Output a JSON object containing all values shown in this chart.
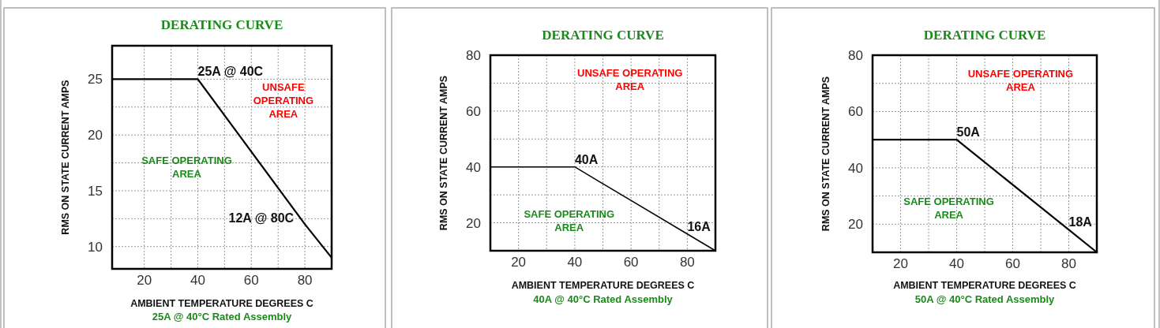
{
  "chart_data": [
    {
      "type": "line",
      "title": "DERATING CURVE",
      "xlabel": "AMBIENT TEMPERATURE DEGREES C",
      "ylabel": "RMS ON STATE CURRENT AMPS",
      "xlim": [
        8,
        90
      ],
      "ylim": [
        8,
        28
      ],
      "xticks": [
        20,
        {
          "value": 30,
          "label": null
        },
        40,
        {
          "value": 50,
          "label": null
        },
        60,
        {
          "value": 70,
          "label": null
        },
        80
      ],
      "yticks": [
        10,
        {
          "value": 12.5,
          "label": null
        },
        15,
        {
          "value": 17.5,
          "label": null
        },
        20,
        {
          "value": 22.5,
          "label": null
        },
        25
      ],
      "grid": true,
      "x": [
        8,
        40,
        80,
        90
      ],
      "values": [
        25,
        25,
        12,
        9
      ],
      "value_labels": [
        null,
        "25A @ 40C",
        "12A @ 80C",
        null
      ],
      "color": "#000000",
      "annotations": [
        "UNSAFE OPERATING AREA",
        "SAFE OPERATING AREA",
        "25A @ 40°C Rated Assembly"
      ]
    },
    {
      "type": "line",
      "title": "DERATING CURVE",
      "xlabel": "AMBIENT TEMPERATURE DEGREES C",
      "ylabel": "RMS ON STATE CURRENT AMPS",
      "xlim": [
        10,
        90
      ],
      "ylim": [
        10,
        80
      ],
      "xticks": [
        20,
        {
          "value": 30,
          "label": null
        },
        40,
        {
          "value": 50,
          "label": null
        },
        60,
        {
          "value": 70,
          "label": null
        },
        80
      ],
      "yticks": [
        20,
        {
          "value": 30,
          "label": null
        },
        40,
        {
          "value": 50,
          "label": null
        },
        60,
        {
          "value": 70,
          "label": null
        },
        80
      ],
      "grid": true,
      "x": [
        10,
        40,
        80,
        90
      ],
      "values": [
        40,
        40,
        16,
        10
      ],
      "value_labels": [
        null,
        "40A",
        "16A",
        null
      ],
      "color": "#000000",
      "annotations": [
        "UNSAFE OPERATING AREA",
        "SAFE OPERATING AREA",
        "40A @ 40°C Rated Assembly"
      ]
    },
    {
      "type": "line",
      "title": "DERATING CURVE",
      "xlabel": "AMBIENT TEMPERATURE DEGREES C",
      "ylabel": "RMS ON STATE CURRENT AMPS",
      "xlim": [
        10,
        90
      ],
      "ylim": [
        10,
        80
      ],
      "xticks": [
        20,
        {
          "value": 30,
          "label": null
        },
        40,
        {
          "value": 50,
          "label": null
        },
        60,
        {
          "value": 70,
          "label": null
        },
        80
      ],
      "yticks": [
        20,
        {
          "value": 30,
          "label": null
        },
        40,
        {
          "value": 50,
          "label": null
        },
        60,
        {
          "value": 70,
          "label": null
        },
        80
      ],
      "grid": true,
      "x": [
        10,
        40,
        80,
        90
      ],
      "values": [
        50,
        50,
        18,
        10
      ],
      "value_labels": [
        null,
        "50A",
        "18A",
        null
      ],
      "color": "#000000",
      "annotations": [
        "UNSAFE OPERATING AREA",
        "SAFE OPERATING AREA",
        "50A @ 40°C Rated Assembly"
      ]
    }
  ]
}
